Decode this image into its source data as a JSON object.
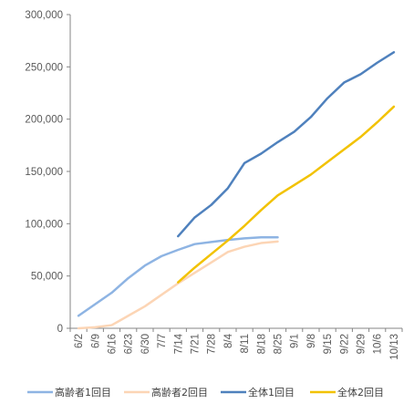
{
  "chart_data": {
    "type": "line",
    "title": "",
    "xlabel": "",
    "ylabel": "",
    "categories": [
      "6/2",
      "6/9",
      "6/16",
      "6/23",
      "6/30",
      "7/7",
      "7/14",
      "7/21",
      "7/28",
      "8/4",
      "8/11",
      "8/18",
      "8/25",
      "9/1",
      "9/8",
      "9/15",
      "9/22",
      "9/29",
      "10/6",
      "10/13"
    ],
    "ylim": [
      0,
      300000
    ],
    "yticks": [
      0,
      50000,
      100000,
      150000,
      200000,
      250000,
      300000
    ],
    "ytick_labels": [
      "0",
      "50,000",
      "100,000",
      "150,000",
      "200,000",
      "250,000",
      "300,000"
    ],
    "grid": false,
    "legend_position": "bottom",
    "series": [
      {
        "name": "高齢者1回目",
        "color": "#8eb4e3",
        "values": [
          12000,
          23000,
          34000,
          48000,
          60000,
          69000,
          75000,
          80500,
          82500,
          84500,
          86000,
          87000,
          87000,
          null,
          null,
          null,
          null,
          null,
          null,
          null
        ]
      },
      {
        "name": "高齢者2回目",
        "color": "#fcd5b5",
        "values": [
          0,
          1000,
          3000,
          12000,
          21000,
          32000,
          43000,
          53000,
          63000,
          73000,
          78000,
          81500,
          83000,
          null,
          null,
          null,
          null,
          null,
          null,
          null
        ]
      },
      {
        "name": "全体1回目",
        "color": "#4f81bd",
        "values": [
          null,
          null,
          null,
          null,
          null,
          null,
          88000,
          106000,
          118000,
          134000,
          158000,
          167000,
          178000,
          188000,
          202000,
          220000,
          235000,
          243000,
          254000,
          264000
        ]
      },
      {
        "name": "全体2回目",
        "color": "#f2c200",
        "values": [
          null,
          null,
          null,
          null,
          null,
          null,
          44000,
          58000,
          71000,
          84000,
          98000,
          113000,
          127000,
          137000,
          147000,
          159000,
          171000,
          183000,
          197000,
          212000
        ]
      }
    ]
  }
}
